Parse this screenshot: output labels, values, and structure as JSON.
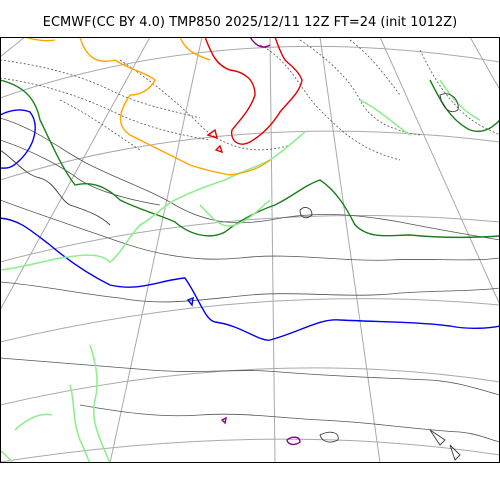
{
  "title": "ECMWF(CC BY 4.0) TMP850 2025/12/11 12Z FT=24 (init 1012Z)",
  "colors": {
    "coast": "#3a3a3a",
    "graticule": "#a9a9a9",
    "isotherm_thin": "#555555",
    "blue": "#0000ee",
    "green": "#1a7f1a",
    "lightgreen": "#90ee90",
    "orange": "#ffa500",
    "red": "#e00000",
    "purple": "#8b008b"
  },
  "contour_legend": [
    {
      "color": "blue",
      "meaning": "cold isotherm"
    },
    {
      "color": "green",
      "meaning": "isotherm"
    },
    {
      "color": "lightgreen",
      "meaning": "isotherm"
    },
    {
      "color": "orange",
      "meaning": "isotherm"
    },
    {
      "color": "red",
      "meaning": "warm isotherm"
    },
    {
      "color": "purple",
      "meaning": "warmest isotherm"
    }
  ]
}
